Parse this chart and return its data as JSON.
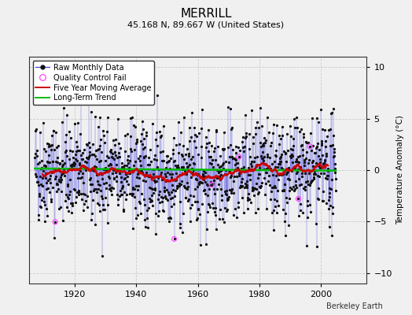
{
  "title": "MERRILL",
  "subtitle": "45.168 N, 89.667 W (United States)",
  "ylabel": "Temperature Anomaly (°C)",
  "attribution": "Berkeley Earth",
  "xlim": [
    1905,
    2015
  ],
  "ylim": [
    -11,
    11
  ],
  "yticks": [
    -10,
    -5,
    0,
    5,
    10
  ],
  "xticks": [
    1920,
    1940,
    1960,
    1980,
    2000
  ],
  "bg_color": "#e8e8e8",
  "plot_bg_color": "#f0f0f0",
  "line_color": "#4444dd",
  "marker_color": "#111111",
  "ma_color": "#cc0000",
  "trend_color": "#00bb00",
  "qc_color": "#ff44ff",
  "seed": 42,
  "n_months": 1176,
  "start_year": 1907.0
}
